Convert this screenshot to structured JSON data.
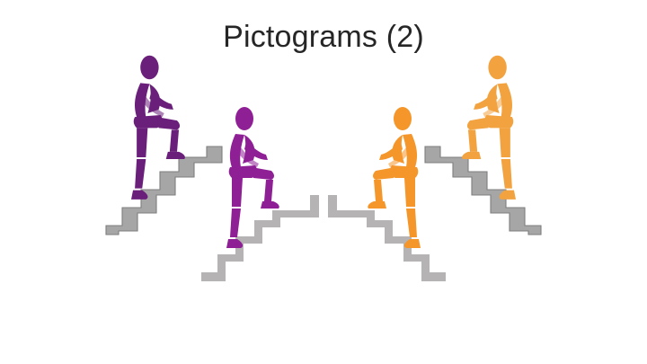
{
  "slide": {
    "title": "Pictograms (2)"
  },
  "colors": {
    "purple_dark": "#5b1f6b",
    "purple": "#8d1e93",
    "purple_light": "#a23fab",
    "orange_dark": "#e07f14",
    "orange": "#f39c2c",
    "orange_light": "#f7b866",
    "stair_gray": "#a6a6a6"
  },
  "pictograms": [
    {
      "name": "purple-climber-left",
      "color": "purple_dark",
      "direction": "right",
      "style": "outlined"
    },
    {
      "name": "purple-climber-center",
      "color": "purple",
      "direction": "right",
      "style": "flat"
    },
    {
      "name": "orange-climber-center",
      "color": "orange",
      "direction": "left",
      "style": "flat"
    },
    {
      "name": "orange-climber-right",
      "color": "orange",
      "direction": "left",
      "style": "outlined"
    }
  ]
}
